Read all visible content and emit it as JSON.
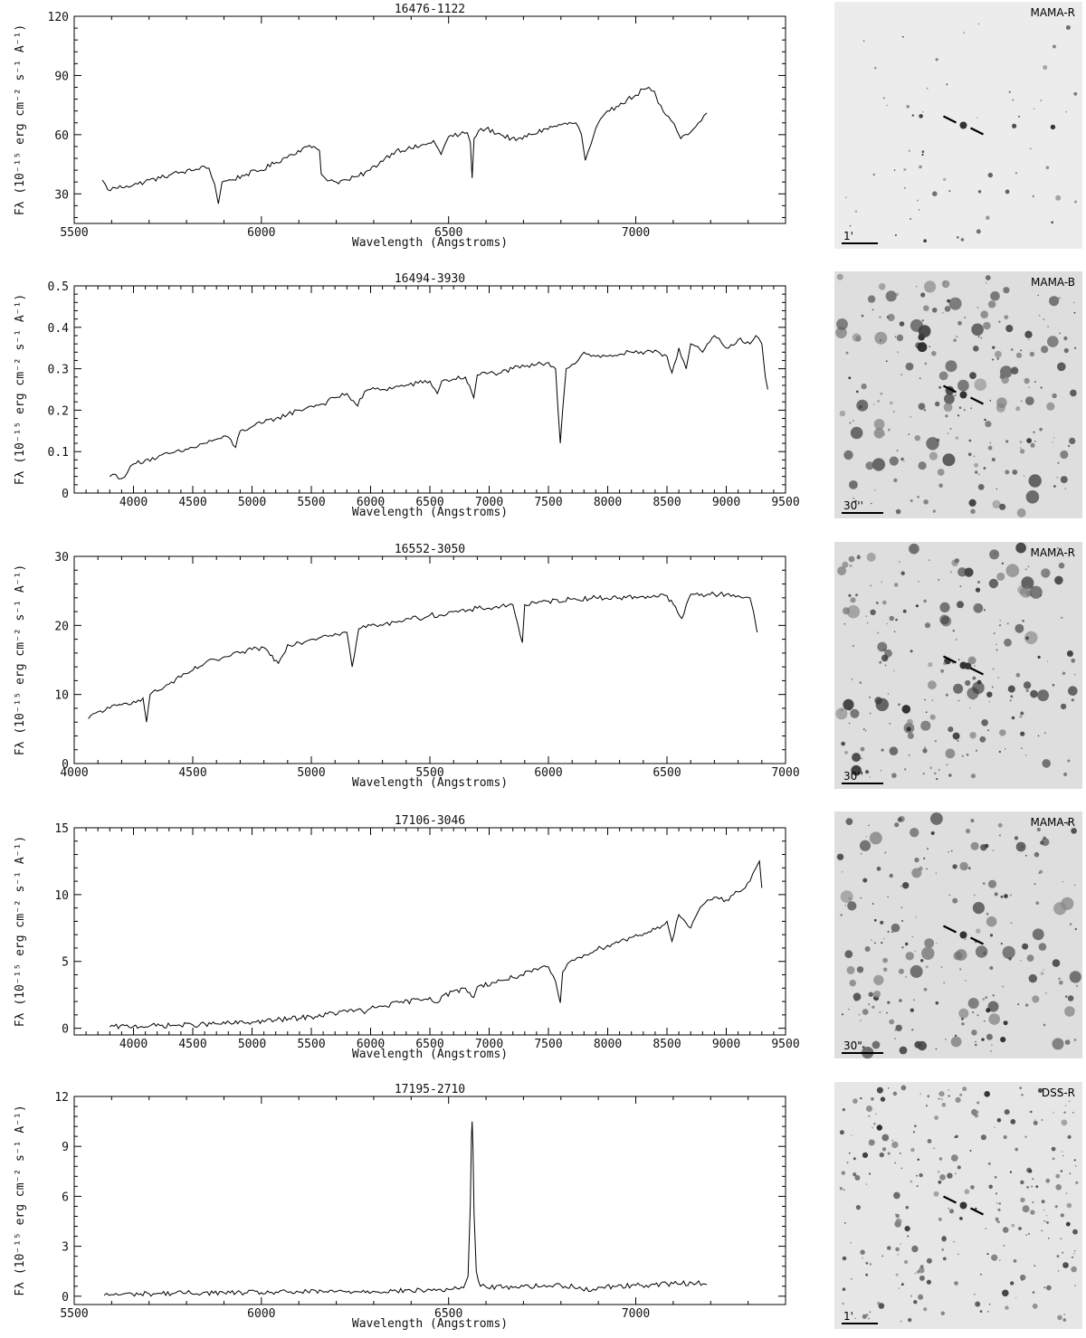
{
  "chart_data": [
    {
      "type": "line",
      "title": "16476-1122",
      "xlabel": "Wavelength (Angstroms)",
      "ylabel": "Fλ (10⁻¹⁵ erg cm⁻² s⁻¹ A⁻¹)",
      "xlim": [
        5500,
        7400
      ],
      "ylim": [
        15,
        120
      ],
      "xticks": [
        5500,
        6000,
        6500,
        7000
      ],
      "yticks": [
        30,
        60,
        90,
        120
      ],
      "grid": false,
      "series": [
        {
          "x": [
            5575,
            5590,
            5610,
            5640,
            5670,
            5700,
            5730,
            5760,
            5790,
            5820,
            5840,
            5860,
            5875,
            5885,
            5895,
            5920,
            5960,
            6000,
            6040,
            6080,
            6110,
            6140,
            6155,
            6160,
            6170,
            6200,
            6230,
            6260,
            6290,
            6330,
            6360,
            6400,
            6440,
            6460,
            6480,
            6500,
            6530,
            6550,
            6558,
            6563,
            6568,
            6580,
            6600,
            6640,
            6680,
            6720,
            6760,
            6800,
            6840,
            6855,
            6865,
            6880,
            6900,
            6930,
            6960,
            7000,
            7020,
            7035,
            7050,
            7060,
            7080,
            7095,
            7110,
            7120,
            7140,
            7160,
            7175,
            7190
          ],
          "values": [
            37,
            32,
            33,
            34,
            35,
            37,
            38,
            40,
            41,
            42,
            44,
            43,
            35,
            25,
            36,
            37,
            40,
            42,
            46,
            50,
            53,
            54,
            52,
            40,
            38,
            36,
            37,
            39,
            42,
            48,
            52,
            53,
            55,
            57,
            50,
            59,
            60,
            61,
            56,
            38,
            58,
            62,
            63,
            60,
            57,
            60,
            63,
            65,
            66,
            60,
            47,
            55,
            66,
            72,
            76,
            80,
            83,
            84,
            82,
            76,
            70,
            67,
            62,
            58,
            60,
            64,
            67,
            71
          ]
        }
      ],
      "finder": {
        "label": "MAMA-R",
        "scale": "1'"
      }
    },
    {
      "type": "line",
      "title": "16494-3930",
      "xlabel": "Wavelength (Angstroms)",
      "ylabel": "Fλ (10⁻¹⁵ erg cm⁻² s⁻¹ A⁻¹)",
      "xlim": [
        3500,
        9500
      ],
      "ylim": [
        0,
        0.5
      ],
      "xticks": [
        4000,
        4500,
        5000,
        5500,
        6000,
        6500,
        7000,
        7500,
        8000,
        8500,
        9000,
        9500
      ],
      "yticks": [
        0,
        0.1,
        0.2,
        0.3,
        0.4,
        0.5
      ],
      "grid": false,
      "series": [
        {
          "x": [
            3800,
            3850,
            3900,
            3950,
            4000,
            4100,
            4200,
            4300,
            4400,
            4500,
            4600,
            4700,
            4800,
            4861,
            4900,
            5000,
            5100,
            5200,
            5300,
            5400,
            5500,
            5600,
            5700,
            5800,
            5890,
            5950,
            6000,
            6100,
            6200,
            6300,
            6400,
            6500,
            6563,
            6600,
            6700,
            6800,
            6870,
            6900,
            7000,
            7100,
            7200,
            7300,
            7400,
            7500,
            7560,
            7600,
            7620,
            7650,
            7700,
            7750,
            7800,
            7900,
            8000,
            8100,
            8200,
            8300,
            8400,
            8500,
            8542,
            8600,
            8662,
            8700,
            8800,
            8900,
            9000,
            9100,
            9200,
            9250,
            9300,
            9330,
            9350
          ],
          "values": [
            0.04,
            0.045,
            0.035,
            0.05,
            0.07,
            0.08,
            0.085,
            0.095,
            0.1,
            0.11,
            0.12,
            0.13,
            0.135,
            0.11,
            0.15,
            0.16,
            0.17,
            0.18,
            0.19,
            0.2,
            0.21,
            0.215,
            0.23,
            0.24,
            0.21,
            0.245,
            0.25,
            0.25,
            0.255,
            0.26,
            0.265,
            0.27,
            0.24,
            0.27,
            0.275,
            0.28,
            0.23,
            0.285,
            0.29,
            0.29,
            0.3,
            0.305,
            0.31,
            0.315,
            0.3,
            0.12,
            0.2,
            0.3,
            0.31,
            0.32,
            0.34,
            0.33,
            0.33,
            0.335,
            0.34,
            0.335,
            0.345,
            0.33,
            0.29,
            0.35,
            0.3,
            0.36,
            0.34,
            0.38,
            0.35,
            0.37,
            0.36,
            0.38,
            0.36,
            0.28,
            0.25
          ]
        }
      ],
      "finder": {
        "label": "MAMA-B",
        "scale": "30''"
      }
    },
    {
      "type": "line",
      "title": "16552-3050",
      "xlabel": "Wavelength (Angstroms)",
      "ylabel": "Fλ (10⁻¹⁵ erg cm⁻² s⁻¹ A⁻¹)",
      "xlim": [
        4000,
        7000
      ],
      "ylim": [
        0,
        30
      ],
      "xticks": [
        4000,
        4500,
        5000,
        5500,
        6000,
        6500,
        7000
      ],
      "yticks": [
        0,
        10,
        20,
        30
      ],
      "grid": false,
      "series": [
        {
          "x": [
            4060,
            4100,
            4150,
            4200,
            4250,
            4290,
            4305,
            4320,
            4350,
            4400,
            4450,
            4500,
            4550,
            4600,
            4650,
            4700,
            4750,
            4800,
            4861,
            4900,
            4950,
            5000,
            5050,
            5100,
            5150,
            5172,
            5200,
            5250,
            5300,
            5350,
            5400,
            5450,
            5500,
            5550,
            5600,
            5650,
            5700,
            5750,
            5800,
            5850,
            5890,
            5900,
            5950,
            6000,
            6100,
            6200,
            6300,
            6400,
            6500,
            6563,
            6600,
            6700,
            6750,
            6800,
            6850,
            6865,
            6880
          ],
          "values": [
            6.5,
            7.5,
            8,
            8.5,
            9,
            9.5,
            6,
            10,
            10.5,
            11.5,
            12.5,
            13.5,
            14.5,
            15,
            15.5,
            16,
            16.5,
            16.8,
            14.5,
            17.2,
            17.5,
            18,
            18.5,
            18.8,
            19,
            14,
            19.5,
            20,
            20,
            20.5,
            21,
            21,
            21.5,
            21.5,
            22,
            22,
            22.5,
            22.5,
            22.8,
            23,
            17.5,
            23,
            23.2,
            23.5,
            23.8,
            24,
            24,
            24.2,
            24.3,
            21,
            24.5,
            24.5,
            24.5,
            24.3,
            24,
            22,
            19
          ]
        }
      ],
      "finder": {
        "label": "MAMA-R",
        "scale": "30''"
      }
    },
    {
      "type": "line",
      "title": "17106-3046",
      "xlabel": "Wavelength (Angstroms)",
      "ylabel": "Fλ (10⁻¹⁵ erg cm⁻² s⁻¹ A⁻¹)",
      "xlim": [
        3500,
        9500
      ],
      "ylim": [
        -0.5,
        15
      ],
      "xticks": [
        4000,
        4500,
        5000,
        5500,
        6000,
        6500,
        7000,
        7500,
        8000,
        8500,
        9000,
        9500
      ],
      "yticks": [
        0,
        5,
        10,
        15
      ],
      "grid": false,
      "series": [
        {
          "x": [
            3800,
            4000,
            4500,
            5000,
            5500,
            5890,
            5950,
            6000,
            6500,
            6563,
            6600,
            6800,
            6870,
            6900,
            7200,
            7500,
            7560,
            7600,
            7620,
            7700,
            7800,
            8000,
            8200,
            8400,
            8500,
            8542,
            8600,
            8700,
            8800,
            8900,
            9000,
            9100,
            9200,
            9250,
            9280,
            9300
          ],
          "values": [
            0.1,
            0.15,
            0.25,
            0.45,
            0.85,
            1.4,
            1.1,
            1.5,
            2.3,
            1.9,
            2.4,
            3.0,
            2.3,
            3.1,
            3.8,
            4.6,
            3.5,
            1.9,
            4.2,
            5.1,
            5.5,
            6.2,
            6.8,
            7.4,
            8.0,
            6.5,
            8.5,
            7.5,
            9.2,
            9.8,
            9.6,
            10.2,
            11,
            12,
            12.5,
            10.5
          ]
        }
      ],
      "finder": {
        "label": "MAMA-R",
        "scale": "30\""
      }
    },
    {
      "type": "line",
      "title": "17195-2710",
      "xlabel": "Wavelength (Angstroms)",
      "ylabel": "Fλ (10⁻¹⁵ erg cm⁻² s⁻¹ A⁻¹)",
      "xlim": [
        5500,
        7400
      ],
      "ylim": [
        -0.5,
        12
      ],
      "xticks": [
        5500,
        6000,
        6500,
        7000
      ],
      "yticks": [
        0,
        3,
        6,
        9,
        12
      ],
      "grid": false,
      "series": [
        {
          "x": [
            5580,
            5600,
            5700,
            5800,
            5900,
            6000,
            6100,
            6200,
            6300,
            6400,
            6500,
            6540,
            6552,
            6558,
            6561,
            6563,
            6565,
            6568,
            6574,
            6585,
            6600,
            6650,
            6700,
            6750,
            6800,
            6850,
            6880,
            6900,
            6950,
            7000,
            7050,
            7100,
            7150,
            7180,
            7190
          ],
          "values": [
            0.05,
            0.1,
            0.15,
            0.2,
            0.2,
            0.22,
            0.25,
            0.28,
            0.3,
            0.33,
            0.4,
            0.5,
            1.2,
            5.5,
            9.5,
            10.5,
            9.0,
            5.0,
            1.5,
            0.6,
            0.55,
            0.55,
            0.6,
            0.6,
            0.65,
            0.55,
            0.3,
            0.55,
            0.6,
            0.65,
            0.7,
            0.75,
            0.8,
            0.75,
            0.7
          ]
        }
      ],
      "finder": {
        "label": "DSS-R",
        "scale": "1'"
      }
    }
  ]
}
